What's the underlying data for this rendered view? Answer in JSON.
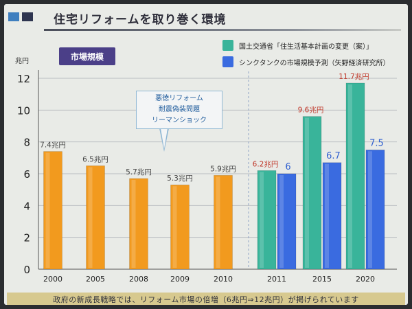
{
  "header": {
    "title": "住宅リフォームを取り巻く環境",
    "square_colors": [
      "#3f7fbf",
      "#2e3550"
    ]
  },
  "badge": {
    "label": "市場規模"
  },
  "unit_label": "兆円",
  "legend": {
    "items": [
      {
        "label": "国土交通省「住生活基本計画の変更（案）」",
        "color": "#39b49a"
      },
      {
        "label": "シンクタンクの市場規模予測（矢野経済研究所）",
        "color": "#3a6be0"
      }
    ]
  },
  "callout": {
    "lines": [
      "悪徳リフォーム",
      "耐震偽装問題",
      "リーマンショック"
    ]
  },
  "footer": {
    "text": "政府の新成長戦略では、リフォーム市場の倍増（6兆円⇒12兆円）が掲げられています"
  },
  "chart_data": {
    "type": "bar",
    "ylim": [
      0,
      12
    ],
    "yticks": [
      0,
      2,
      4,
      6,
      8,
      10,
      12
    ],
    "colors": {
      "historical": "#f29a1e",
      "mlit": "#39b49a",
      "thinktank": "#3a6be0",
      "label_orange": "#444444",
      "label_red": "#c0392b",
      "label_blue": "#2f5fd0"
    },
    "groups": [
      {
        "year": "2000",
        "bars": [
          {
            "series": "historical",
            "value": 7.4,
            "label": "7.4兆円"
          }
        ]
      },
      {
        "year": "2005",
        "bars": [
          {
            "series": "historical",
            "value": 6.5,
            "label": "6.5兆円"
          }
        ]
      },
      {
        "year": "2008",
        "bars": [
          {
            "series": "historical",
            "value": 5.7,
            "label": "5.7兆円"
          }
        ]
      },
      {
        "year": "2009",
        "bars": [
          {
            "series": "historical",
            "value": 5.3,
            "label": "5.3兆円"
          }
        ]
      },
      {
        "year": "2010",
        "bars": [
          {
            "series": "historical",
            "value": 5.9,
            "label": "5.9兆円"
          }
        ]
      },
      {
        "year": "2011",
        "bars": [
          {
            "series": "mlit",
            "value": 6.2,
            "label": "6.2兆円"
          },
          {
            "series": "thinktank",
            "value": 6,
            "label": "6"
          }
        ]
      },
      {
        "year": "2015",
        "bars": [
          {
            "series": "mlit",
            "value": 9.6,
            "label": "9.6兆円"
          },
          {
            "series": "thinktank",
            "value": 6.7,
            "label": "6.7"
          }
        ]
      },
      {
        "year": "2020",
        "bars": [
          {
            "series": "mlit",
            "value": 11.7,
            "label": "11.7兆円"
          },
          {
            "series": "thinktank",
            "value": 7.5,
            "label": "7.5"
          }
        ]
      }
    ]
  }
}
